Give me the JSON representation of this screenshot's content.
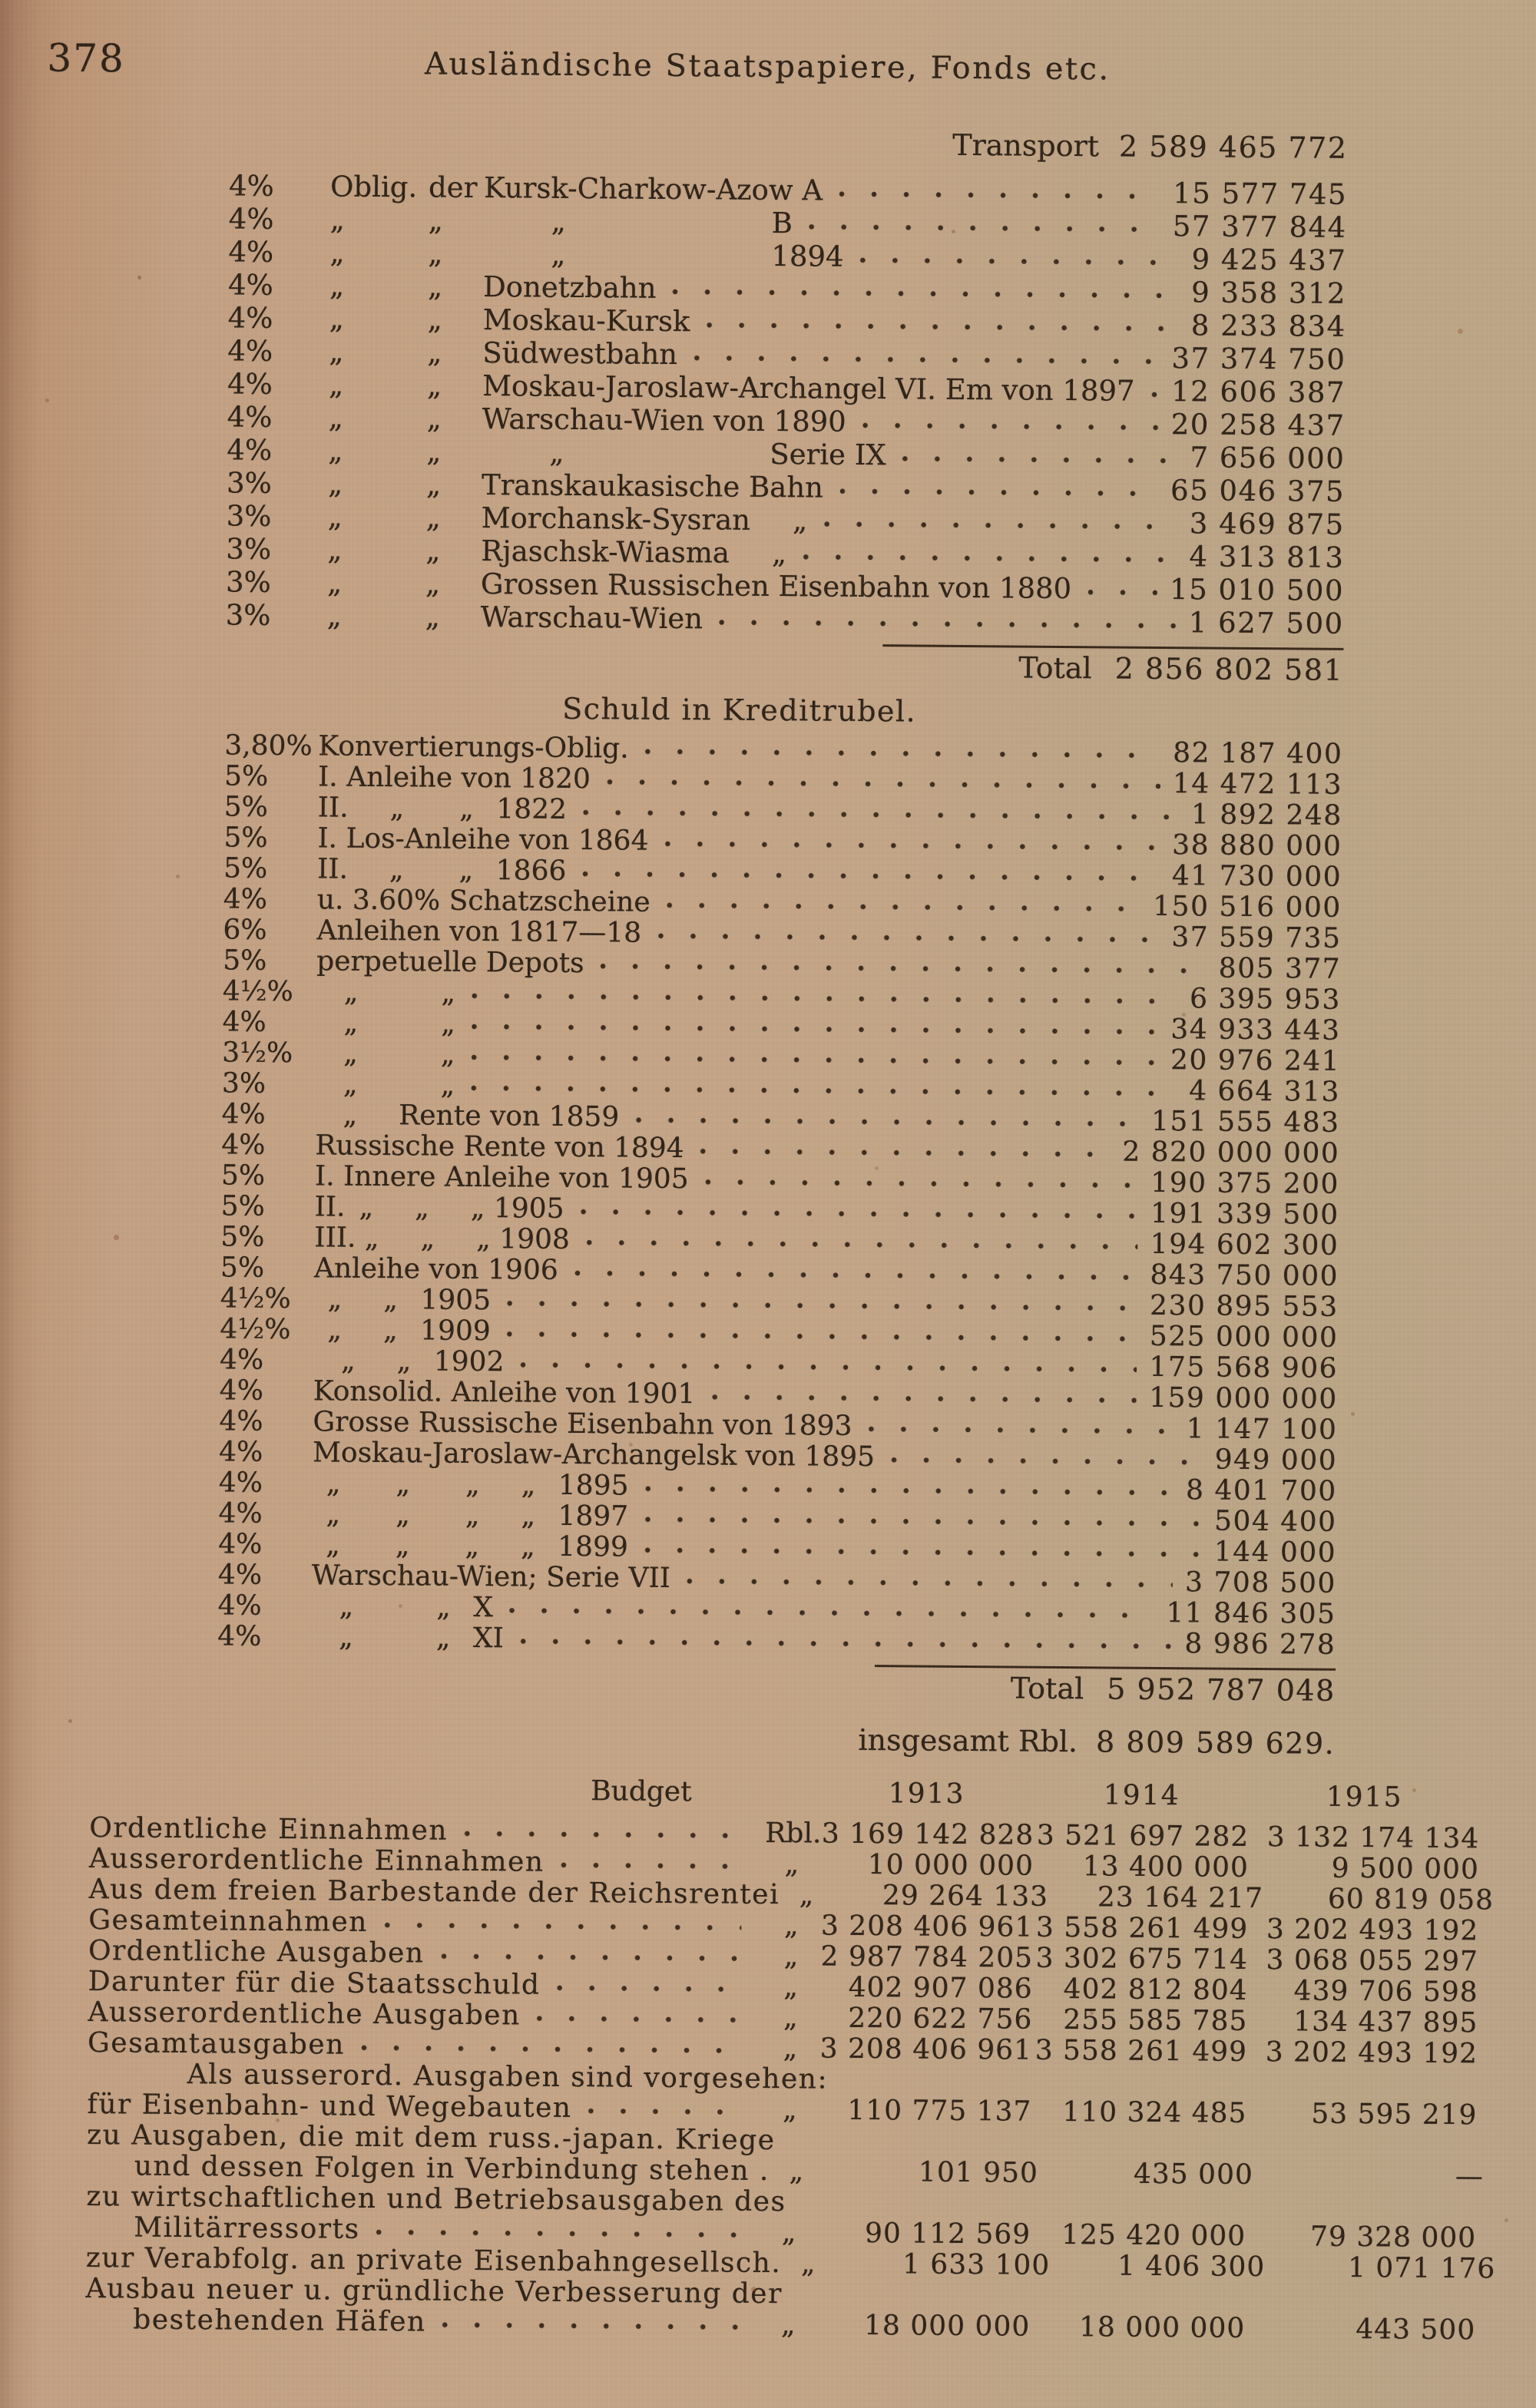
{
  "page": {
    "number": "378",
    "title": "Ausländische Staatspapiere, Fonds etc."
  },
  "carryover": {
    "label": "Transport",
    "value": "2 589 465 772"
  },
  "bond_table": {
    "rows": [
      {
        "p": "4%",
        "c1": "Oblig.",
        "c2": "der",
        "n": "Kursk-Charkow-Azow A",
        "v": "15 577 745"
      },
      {
        "p": "4%",
        "c1": "„",
        "c2": "„",
        "d3": "„",
        "m": "B",
        "v": "57 377 844"
      },
      {
        "p": "4%",
        "c1": "„",
        "c2": "„",
        "d3": "„",
        "m": "1894",
        "v": "9 425 437"
      },
      {
        "p": "4%",
        "c1": "„",
        "c2": "„",
        "n": "Donetzbahn",
        "v": "9 358 312"
      },
      {
        "p": "4%",
        "c1": "„",
        "c2": "„",
        "n": "Moskau-Kursk",
        "v": "8 233 834"
      },
      {
        "p": "4%",
        "c1": "„",
        "c2": "„",
        "n": "Südwestbahn",
        "v": "37 374 750"
      },
      {
        "p": "4%",
        "c1": "„",
        "c2": "„",
        "n": "Moskau-Jaroslaw-Archangel VI. Em von 1897",
        "v": "12 606 387"
      },
      {
        "p": "4%",
        "c1": "„",
        "c2": "„",
        "n": "Warschau-Wien von 1890",
        "v": "20 258 437"
      },
      {
        "p": "4%",
        "c1": "„",
        "c2": "„",
        "d3": "„",
        "m": "Serie IX",
        "v": "7 656 000"
      },
      {
        "p": "3%",
        "c1": "„",
        "c2": "„",
        "n": "Transkaukasische Bahn",
        "v": "65 046 375"
      },
      {
        "p": "3%",
        "c1": "„",
        "c2": "„",
        "n": "Morchansk-Sysran",
        "sfx": "„",
        "v": "3 469 875"
      },
      {
        "p": "3%",
        "c1": "„",
        "c2": "„",
        "n": "Rjaschsk-Wiasma",
        "sfx": "„",
        "v": "4 313 813"
      },
      {
        "p": "3%",
        "c1": "„",
        "c2": "„",
        "n": "Grossen Russischen Eisenbahn von 1880",
        "v": "15 010 500"
      },
      {
        "p": "3%",
        "c1": "„",
        "c2": "„",
        "n": "Warschau-Wien",
        "v": "1 627 500"
      }
    ],
    "total_label": "Total",
    "total_value": "2 856 802 581"
  },
  "kreditrubel": {
    "heading": "Schuld in Kreditrubel.",
    "rows": [
      {
        "p": "3,80%",
        "l": "Konvertierungs-Oblig.",
        "v": "82 187 400"
      },
      {
        "p": "5%",
        "l": "I. Anleihe von 1820",
        "v": "14 472 113"
      },
      {
        "p": "5%",
        "l": "II.  „  „  1822",
        "v": "1 892 248"
      },
      {
        "p": "5%",
        "l": "I. Los-Anleihe von 1864",
        "v": "38 880 000"
      },
      {
        "p": "5%",
        "l": "II.  „  „  1866",
        "v": "41 730 000"
      },
      {
        "p": "4%",
        "l": "u. 3.60% Schatzscheine",
        "v": "150 516 000"
      },
      {
        "p": "6%",
        "l": "Anleihen von 1817—18",
        "v": "37 559 735"
      },
      {
        "p": "5%",
        "l": "perpetuelle Depots",
        "v": "805 377"
      },
      {
        "p": "4½%",
        "l": " „   „",
        "v": "6 395 953"
      },
      {
        "p": "4%",
        "l": " „   „",
        "v": "34 933 443"
      },
      {
        "p": "3½%",
        "l": " „   „",
        "v": "20 976 241"
      },
      {
        "p": "3%",
        "l": " „   „",
        "v": "4 664 313"
      },
      {
        "p": "4%",
        "l": " „  Rente von 1859",
        "v": "151 555 483"
      },
      {
        "p": "4%",
        "l": "Russische Rente von 1894",
        "v": "2 820 000 000"
      },
      {
        "p": "5%",
        "l": "I. Innere Anleihe von 1905",
        "v": "190 375 200"
      },
      {
        "p": "5%",
        "l": "II. „  „  „ 1905",
        "v": "191 339 500"
      },
      {
        "p": "5%",
        "l": "III. „  „  „ 1908",
        "v": "194 602 300"
      },
      {
        "p": "5%",
        "l": "Anleihe von 1906",
        "v": "843 750 000"
      },
      {
        "p": "4½%",
        "l": " „  „  1905",
        "v": "230 895 553"
      },
      {
        "p": "4½%",
        "l": " „  „  1909",
        "v": "525 000 000"
      },
      {
        "p": "4%",
        "l": " „  „  1902",
        "v": "175 568 906"
      },
      {
        "p": "4%",
        "l": "Konsolid. Anleihe von 1901",
        "v": "159 000 000"
      },
      {
        "p": "4%",
        "l": "Grosse Russische Eisenbahn von 1893",
        "v": "1 147 100"
      },
      {
        "p": "4%",
        "l": "Moskau-Jaroslaw-Archangelsk von 1895",
        "v": "949 000"
      },
      {
        "p": "4%",
        "l": " „  „  „  „  1895",
        "v": "8 401 700"
      },
      {
        "p": "4%",
        "l": " „  „  „  „  1897",
        "v": "504 400"
      },
      {
        "p": "4%",
        "l": " „  „  „  „  1899",
        "v": "144 000"
      },
      {
        "p": "4%",
        "l": "Warschau-Wien; Serie VII",
        "v": "3 708 500"
      },
      {
        "p": "4%",
        "l": " „   „  X",
        "v": "11 846 305"
      },
      {
        "p": "4%",
        "l": " „   „  XI",
        "v": "8 986 278"
      }
    ],
    "total_label": "Total",
    "total_value": "5 952 787 048",
    "grand_label": "insgesamt Rbl.",
    "grand_value": "8 809 589 629."
  },
  "budget": {
    "title": "Budget",
    "years": [
      "1913",
      "1914",
      "1915"
    ],
    "rows": [
      {
        "l": "Ordentliche Einnahmen",
        "ind": 0,
        "dots": true,
        "cur": "Rbl.",
        "v1": "3 169 142 828",
        "v2": "3 521 697 282",
        "v3": "3 132 174 134"
      },
      {
        "l": "Ausserordentliche Einnahmen",
        "ind": 0,
        "dots": true,
        "cur": "„",
        "v1": "10 000 000",
        "v2": "13 400 000",
        "v3": "9 500 000"
      },
      {
        "l": "Aus dem freien Barbestande der Reichsrentei",
        "ind": 0,
        "dots": false,
        "cur": "„",
        "v1": "29 264 133",
        "v2": "23 164 217",
        "v3": "60 819 058"
      },
      {
        "l": "Gesamteinnahmen",
        "ind": 0,
        "dots": true,
        "cur": "„",
        "v1": "3 208 406 961",
        "v2": "3 558 261 499",
        "v3": "3 202 493 192"
      },
      {
        "l": "Ordentliche Ausgaben",
        "ind": 0,
        "dots": true,
        "cur": "„",
        "v1": "2 987 784 205",
        "v2": "3 302 675 714",
        "v3": "3 068 055 297"
      },
      {
        "l": "Darunter für die Staatsschuld",
        "ind": 0,
        "dots": true,
        "cur": "„",
        "v1": "402 907 086",
        "v2": "402 812 804",
        "v3": "439 706 598"
      },
      {
        "l": "Ausserordentliche Ausgaben",
        "ind": 0,
        "dots": true,
        "cur": "„",
        "v1": "220 622 756",
        "v2": "255 585 785",
        "v3": "134 437 895"
      },
      {
        "l": "Gesamtausgaben",
        "ind": 0,
        "dots": true,
        "cur": "„",
        "v1": "3 208 406 961",
        "v2": "3 558 261 499",
        "v3": "3 202 493 192"
      },
      {
        "l": "Als ausserord. Ausgaben sind vorgesehen:",
        "ind": 2,
        "dots": false,
        "cur": "",
        "v1": "",
        "v2": "",
        "v3": ""
      },
      {
        "l": "für Eisenbahn- und Wegebauten",
        "ind": 0,
        "dots": true,
        "cur": "„",
        "v1": "110 775 137",
        "v2": "110 324 485",
        "v3": "53 595 219"
      },
      {
        "l": "zu Ausgaben, die mit dem russ.-japan. Kriege",
        "ind": 0,
        "dots": false,
        "cur": "",
        "v1": "",
        "v2": "",
        "v3": ""
      },
      {
        "l": "und dessen Folgen in Verbindung stehen .",
        "ind": 1,
        "dots": false,
        "cur": "„",
        "v1": "101 950",
        "v2": "435 000",
        "v3": "—"
      },
      {
        "l": "zu wirtschaftlichen und Betriebsausgaben des",
        "ind": 0,
        "dots": false,
        "cur": "",
        "v1": "",
        "v2": "",
        "v3": ""
      },
      {
        "l": "Militärressorts",
        "ind": 1,
        "dots": true,
        "cur": "„",
        "v1": "90 112 569",
        "v2": "125 420 000",
        "v3": "79 328 000"
      },
      {
        "l": "zur Verabfolg. an private Eisenbahngesellsch.",
        "ind": 0,
        "dots": false,
        "cur": "„",
        "v1": "1 633 100",
        "v2": "1 406 300",
        "v3": "1 071 176"
      },
      {
        "l": "Ausbau neuer u. gründliche Verbesserung der",
        "ind": 0,
        "dots": false,
        "cur": "",
        "v1": "",
        "v2": "",
        "v3": ""
      },
      {
        "l": "bestehenden Häfen",
        "ind": 1,
        "dots": true,
        "cur": "„",
        "v1": "18 000 000",
        "v2": "18 000 000",
        "v3": "443 500"
      }
    ]
  }
}
